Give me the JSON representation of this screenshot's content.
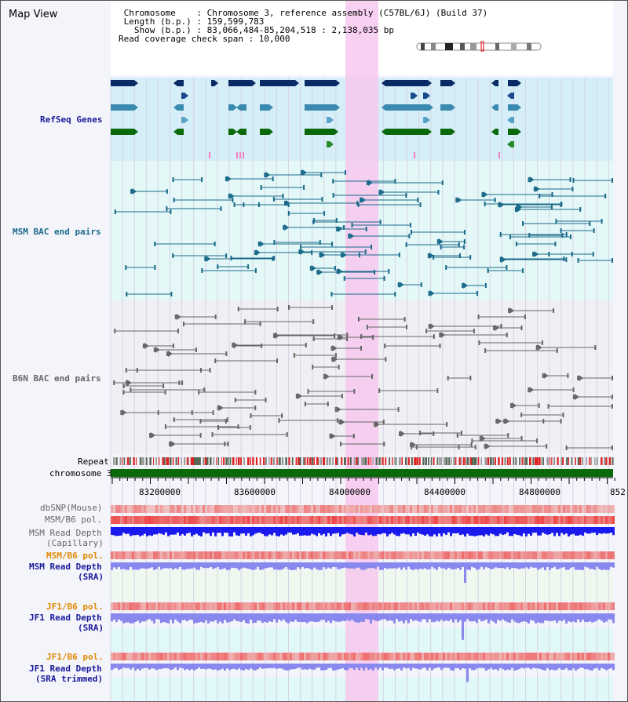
{
  "view_title": "Map View",
  "info": {
    "chromosome_line": " Chromosome    : Chromosome 3, reference assembly (C57BL/6J) (Build 37)",
    "length_line": " Length (b.p.) : 159,599,783",
    "show_line": "   Show (b.p.) : 83,066,484-85,204,518 : 2,138,035 bp",
    "coverage_line": "Read coverage check span : 10,000"
  },
  "tracks": {
    "refseq": "RefSeq Genes",
    "msm_bac": "MSM BAC end pairs",
    "b6n_bac": "B6N BAC end pairs",
    "repeat": "Repeat",
    "chromosome": "chromosome 3",
    "dbsnp": "dbSNP(Mouse)",
    "msm_b6_pol_1": "MSM/B6 pol.",
    "msm_depth_cap_1": "MSM Read Depth",
    "msm_depth_cap_2": "(Capillary)",
    "msm_b6_pol_2": "MSM/B6 pol.",
    "msm_depth_sra_1": "MSM Read Depth",
    "msm_depth_sra_2": "(SRA)",
    "jf1_b6_pol_1": "JF1/B6 pol.",
    "jf1_depth_sra_1": "JF1 Read Depth",
    "jf1_depth_sra_2": "(SRA)",
    "jf1_b6_pol_2": "JF1/B6 pol.",
    "jf1_depth_trim_1": "JF1 Read Depth",
    "jf1_depth_trim_2": "(SRA trimmed)"
  },
  "axis_ticks": [
    "83200000",
    "83600000",
    "84000000",
    "84400000",
    "84800000",
    "852"
  ],
  "colors": {
    "refseq_navy": "#0a2a66",
    "refseq_teal": "#3a8ab0",
    "refseq_green": "#0a6a0a",
    "msm_bac": "#1a6a8a",
    "b6n_bac": "#666666",
    "highlight": "#f7c8ee",
    "depth_blue": "#1a1aee",
    "depth_light": "#8888ee",
    "pol_red": "#ee4444",
    "chromosome_green": "#0a6a0a",
    "label_blue": "#1a1a9a",
    "label_teal": "#1a6a8a",
    "label_orange": "#e08a00"
  }
}
